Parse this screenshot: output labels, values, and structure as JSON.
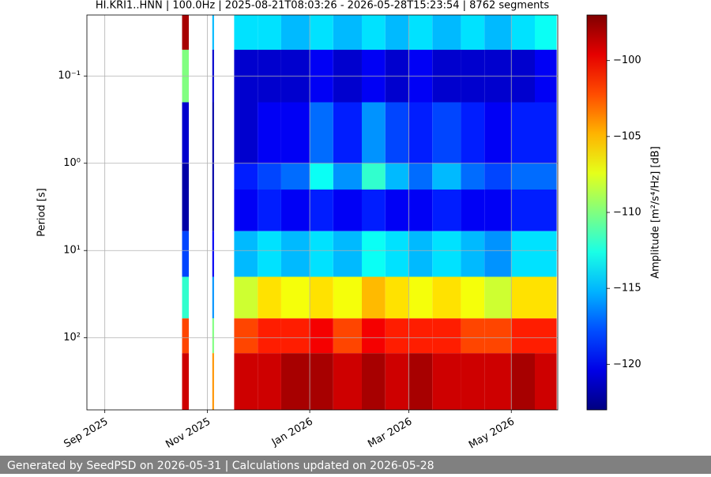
{
  "chart_data": {
    "type": "spectrogram",
    "title": "HI.KRI1..HNN | 100.0Hz | 2025-08-21T08:03:26 - 2026-05-28T15:23:54 | 8762 segments",
    "y_label": "Period [s]",
    "colorbar_label": "Amplitude [m²/s⁴/Hz] [dB]",
    "colormap": "jet",
    "clim": [
      -123,
      -97
    ],
    "cbar_ticks": [
      {
        "value": -100,
        "label": "−100"
      },
      {
        "value": -105,
        "label": "−105"
      },
      {
        "value": -110,
        "label": "−110"
      },
      {
        "value": -115,
        "label": "−115"
      },
      {
        "value": -120,
        "label": "−120"
      }
    ],
    "log_y": true,
    "y_inverted": true,
    "grid": true,
    "xlim": [
      "2025-08-21T08:03:26",
      "2026-05-28T15:23:54"
    ],
    "xticks": [
      {
        "value": "2025-09-01",
        "label": "Sep 2025"
      },
      {
        "value": "2025-11-01",
        "label": "Nov 2025"
      },
      {
        "value": "2026-01-01",
        "label": "Jan 2026"
      },
      {
        "value": "2026-03-01",
        "label": "Mar 2026"
      },
      {
        "value": "2026-05-01",
        "label": "May 2026"
      }
    ],
    "ylim": [
      0.02,
      670
    ],
    "yticks": [
      {
        "value": 0.1,
        "label": "10⁻¹"
      },
      {
        "value": 1,
        "label": "10⁰"
      },
      {
        "value": 10,
        "label": "10¹"
      },
      {
        "value": 100,
        "label": "10²"
      }
    ],
    "period_bands": [
      0.02,
      0.05,
      0.2,
      1,
      2,
      6,
      20,
      60,
      150,
      670
    ],
    "segments": [
      {
        "start": "2025-10-17",
        "end": "2025-10-21",
        "values": [
          -98,
          -110,
          -121,
          -122,
          -122,
          -118,
          -112,
          -102,
          -99
        ]
      },
      {
        "start": "2025-11-04",
        "end": "2025-11-05",
        "values": [
          -115,
          -121,
          -122,
          -122,
          -122,
          -120,
          -116,
          -110,
          -104
        ]
      },
      {
        "start": "2025-11-17",
        "end": "2025-12-01",
        "values": [
          -114,
          -121,
          -121,
          -119,
          -120,
          -115,
          -108,
          -102,
          -99
        ]
      },
      {
        "start": "2025-12-01",
        "end": "2025-12-15",
        "values": [
          -114,
          -121,
          -120,
          -118,
          -119,
          -114,
          -106,
          -101,
          -99
        ]
      },
      {
        "start": "2025-12-15",
        "end": "2026-01-01",
        "values": [
          -115,
          -121,
          -120,
          -117,
          -120,
          -115,
          -107,
          -101,
          -98
        ]
      },
      {
        "start": "2026-01-01",
        "end": "2026-01-15",
        "values": [
          -114,
          -120,
          -117,
          -113,
          -119,
          -114,
          -106,
          -100,
          -98
        ]
      },
      {
        "start": "2026-01-15",
        "end": "2026-02-01",
        "values": [
          -115,
          -121,
          -119,
          -116,
          -120,
          -115,
          -107,
          -102,
          -99
        ]
      },
      {
        "start": "2026-02-01",
        "end": "2026-02-15",
        "values": [
          -114,
          -120,
          -116,
          -112,
          -119,
          -113,
          -105,
          -100,
          -98
        ]
      },
      {
        "start": "2026-02-15",
        "end": "2026-03-01",
        "values": [
          -115,
          -121,
          -118,
          -115,
          -120,
          -114,
          -106,
          -101,
          -99
        ]
      },
      {
        "start": "2026-03-01",
        "end": "2026-03-15",
        "values": [
          -114,
          -120,
          -119,
          -117,
          -120,
          -115,
          -107,
          -101,
          -98
        ]
      },
      {
        "start": "2026-03-15",
        "end": "2026-04-01",
        "values": [
          -115,
          -121,
          -118,
          -115,
          -119,
          -114,
          -106,
          -101,
          -99
        ]
      },
      {
        "start": "2026-04-01",
        "end": "2026-04-15",
        "values": [
          -114,
          -121,
          -119,
          -117,
          -120,
          -115,
          -107,
          -102,
          -99
        ]
      },
      {
        "start": "2026-04-15",
        "end": "2026-05-01",
        "values": [
          -115,
          -121,
          -120,
          -118,
          -120,
          -116,
          -108,
          -102,
          -99
        ]
      },
      {
        "start": "2026-05-01",
        "end": "2026-05-15",
        "values": [
          -114,
          -121,
          -119,
          -117,
          -119,
          -114,
          -106,
          -101,
          -98
        ]
      },
      {
        "start": "2026-05-15",
        "end": "2026-05-28",
        "values": [
          -113,
          -120,
          -119,
          -117,
          -119,
          -114,
          -106,
          -101,
          -99
        ]
      }
    ],
    "footer": "Generated by SeedPSD on 2026-05-31 | Calculations updated on 2026-05-28"
  }
}
